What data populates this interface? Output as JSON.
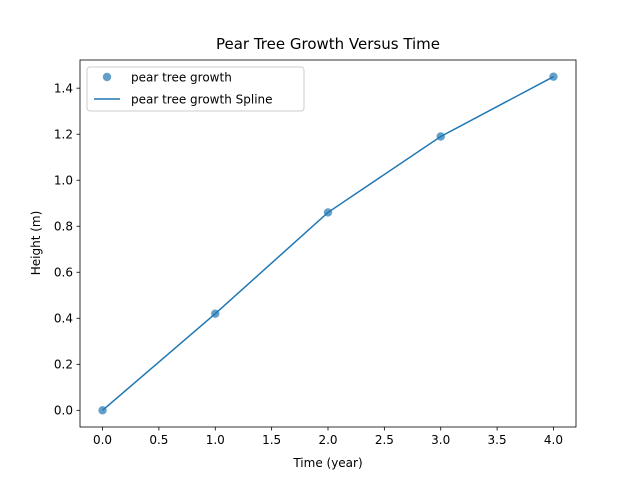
{
  "chart_data": {
    "type": "line",
    "title": "Pear Tree Growth Versus Time",
    "xlabel": "Time (year)",
    "ylabel": "Height (m)",
    "xlim": [
      -0.2,
      4.2
    ],
    "ylim": [
      -0.0725,
      1.5225
    ],
    "xticks": [
      0.0,
      0.5,
      1.0,
      1.5,
      2.0,
      2.5,
      3.0,
      3.5,
      4.0
    ],
    "xtick_labels": [
      "0.0",
      "0.5",
      "1.0",
      "1.5",
      "2.0",
      "2.5",
      "3.0",
      "3.5",
      "4.0"
    ],
    "yticks": [
      0.0,
      0.2,
      0.4,
      0.6,
      0.8,
      1.0,
      1.2,
      1.4
    ],
    "ytick_labels": [
      "0.0",
      "0.2",
      "0.4",
      "0.6",
      "0.8",
      "1.0",
      "1.2",
      "1.4"
    ],
    "grid": false,
    "legend_position": "top-left",
    "series": [
      {
        "name": "pear tree growth",
        "kind": "scatter",
        "color": "#1f77b4",
        "x": [
          0,
          1,
          2,
          3,
          4
        ],
        "y": [
          0.0,
          0.42,
          0.86,
          1.19,
          1.45
        ]
      },
      {
        "name": "pear tree growth Spline",
        "kind": "line",
        "color": "#1f77b4",
        "x": [
          0,
          1,
          2,
          3,
          4
        ],
        "y": [
          0.0,
          0.42,
          0.86,
          1.19,
          1.45
        ]
      }
    ]
  }
}
